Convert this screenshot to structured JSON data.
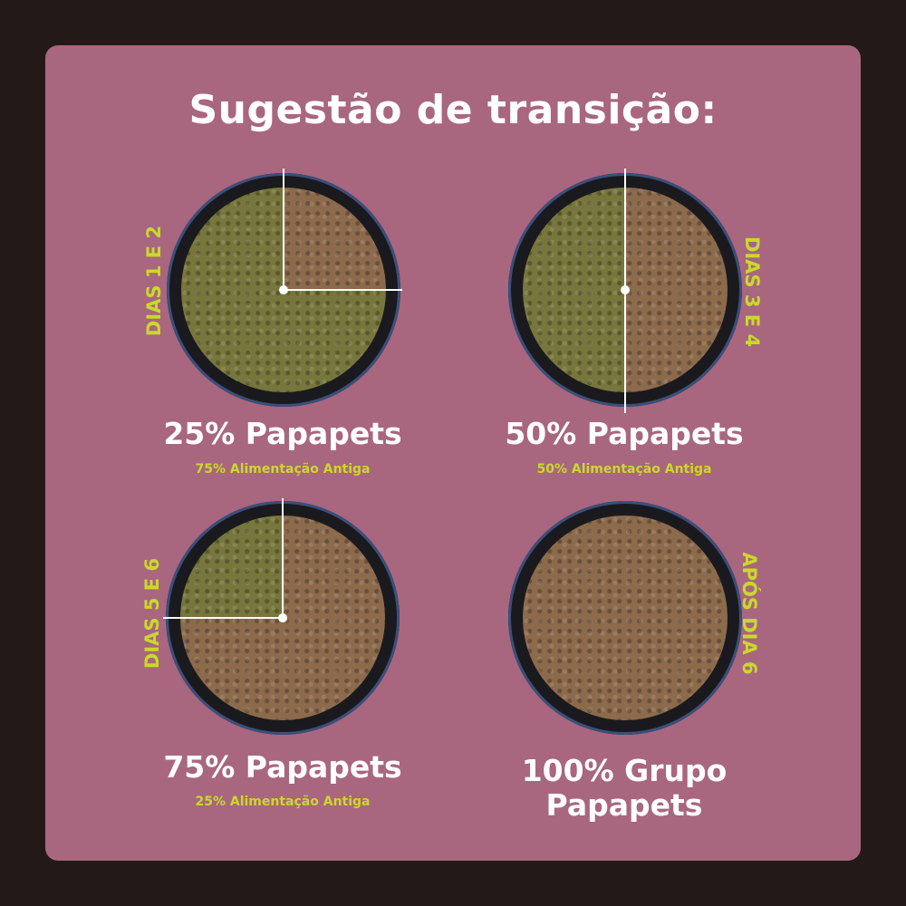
{
  "title": "Sugestão de transição:",
  "colors": {
    "background": "#231a18",
    "card": "#a9667f",
    "accent": "#c9d92c",
    "kibble": "#77763c",
    "wet_food": "#8c6a4c"
  },
  "steps": [
    {
      "days": "DIAS 1 E 2",
      "main": "25% Papapets",
      "sub": "75% Alimentação Antiga",
      "papapets_percent": 25
    },
    {
      "days": "DIAS 3 E 4",
      "main": "50% Papapets",
      "sub": "50% Alimentação Antiga",
      "papapets_percent": 50
    },
    {
      "days": "DIAS 5 E 6",
      "main": "75% Papapets",
      "sub": "25% Alimentação Antiga",
      "papapets_percent": 75
    },
    {
      "days": "APÓS DIA 6",
      "main": "100% Grupo Papapets",
      "papapets_percent": 100
    }
  ]
}
